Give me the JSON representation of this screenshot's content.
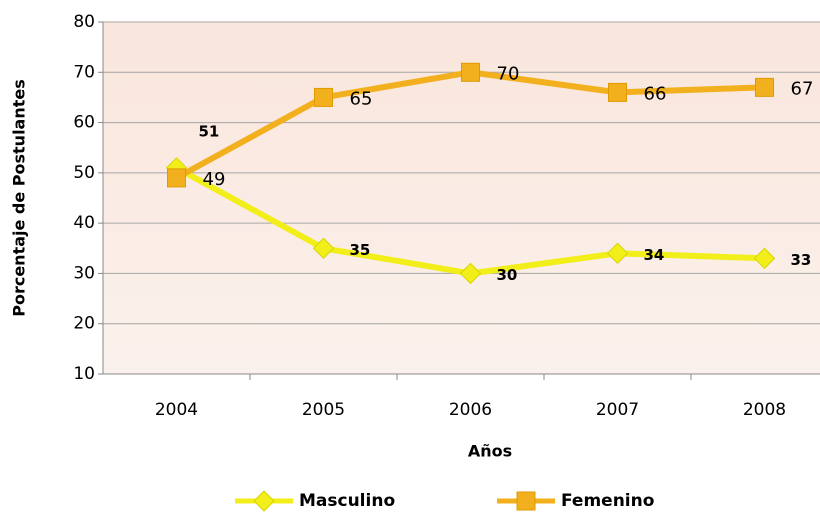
{
  "chart_data": {
    "type": "line",
    "xlabel": "Años",
    "ylabel": "Porcentaje de Postulantes",
    "categories": [
      "2004",
      "2005",
      "2006",
      "2007",
      "2008"
    ],
    "series": [
      {
        "name": "Masculino",
        "color": "#f2ee1a",
        "values": [
          51,
          35,
          30,
          34,
          33
        ]
      },
      {
        "name": "Femenino",
        "color": "#f2b01e",
        "values": [
          49,
          65,
          70,
          66,
          67
        ]
      }
    ],
    "ylim": [
      10,
      80
    ],
    "yticks": [
      10,
      20,
      30,
      40,
      50,
      60,
      70,
      80
    ],
    "grid": true,
    "legend": "bottom"
  }
}
